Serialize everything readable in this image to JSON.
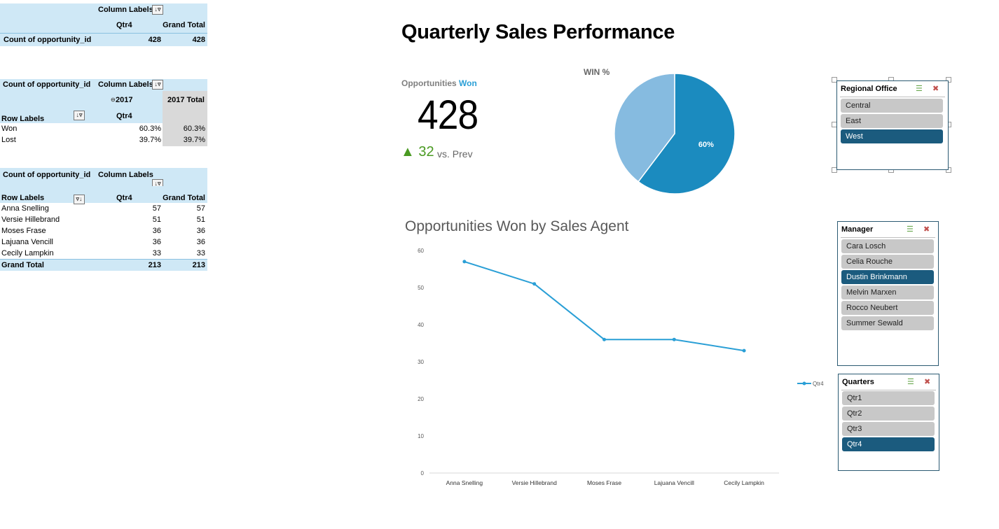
{
  "pivot1": {
    "column_labels": "Column Labels",
    "col_qtr": "Qtr4",
    "col_grand": "Grand Total",
    "row_label": "Count of opportunity_id",
    "qtr_value": "428",
    "grand_value": "428"
  },
  "pivot2": {
    "corner": "Count of opportunity_id",
    "column_labels": "Column Labels",
    "year": "2017",
    "year_total": "2017 Total",
    "row_labels": "Row Labels",
    "qtr": "Qtr4",
    "rows": [
      {
        "label": "Won",
        "qtr": "60.3%",
        "total": "60.3%"
      },
      {
        "label": "Lost",
        "qtr": "39.7%",
        "total": "39.7%"
      }
    ]
  },
  "pivot3": {
    "corner": "Count of opportunity_id",
    "column_labels": "Column Labels",
    "row_labels": "Row Labels",
    "col_qtr": "Qtr4",
    "col_grand": "Grand Total",
    "rows": [
      {
        "label": "Anna Snelling",
        "qtr": "57",
        "total": "57"
      },
      {
        "label": "Versie Hillebrand",
        "qtr": "51",
        "total": "51"
      },
      {
        "label": "Moses Frase",
        "qtr": "36",
        "total": "36"
      },
      {
        "label": "Lajuana Vencill",
        "qtr": "36",
        "total": "36"
      },
      {
        "label": "Cecily Lampkin",
        "qtr": "33",
        "total": "33"
      }
    ],
    "grand_label": "Grand Total",
    "grand_qtr": "213",
    "grand_total": "213"
  },
  "dashboard": {
    "title": "Quarterly Sales Performance",
    "kpi_label_prefix": "Opportunities",
    "kpi_label_highlight": "Won",
    "kpi_value": "428",
    "delta_arrow": "▲",
    "delta_value": "32",
    "delta_label": "vs. Prev"
  },
  "colors": {
    "pie_won": "#1b8bbf",
    "pie_lost": "#86bbe0",
    "line": "#2a9fd6",
    "slicer_selected": "#1b5b7e",
    "slicer_item": "#c8c8c8"
  },
  "chart_data": [
    {
      "type": "pie",
      "title": "WIN %",
      "values": [
        60.3,
        39.7
      ],
      "data_labels": [
        "60%",
        ""
      ]
    },
    {
      "type": "line",
      "title": "Opportunities Won by Sales Agent",
      "categories": [
        "Anna Snelling",
        "Versie Hillebrand",
        "Moses Frase",
        "Lajuana Vencill",
        "Cecily Lampkin"
      ],
      "series": [
        {
          "name": "Qtr4",
          "values": [
            57,
            51,
            36,
            36,
            33
          ]
        }
      ],
      "ylim": [
        0,
        60
      ],
      "yticks": [
        0,
        10,
        20,
        30,
        40,
        50,
        60
      ],
      "grid": false,
      "legend": "right"
    }
  ],
  "slicers": {
    "regional": {
      "title": "Regional Office",
      "items": [
        {
          "label": "Central",
          "selected": false
        },
        {
          "label": "East",
          "selected": false
        },
        {
          "label": "West",
          "selected": true
        }
      ]
    },
    "manager": {
      "title": "Manager",
      "items": [
        {
          "label": "Cara Losch",
          "selected": false
        },
        {
          "label": "Celia Rouche",
          "selected": false
        },
        {
          "label": "Dustin Brinkmann",
          "selected": true
        },
        {
          "label": "Melvin Marxen",
          "selected": false
        },
        {
          "label": "Rocco Neubert",
          "selected": false
        },
        {
          "label": "Summer Sewald",
          "selected": false
        }
      ]
    },
    "quarters": {
      "title": "Quarters",
      "items": [
        {
          "label": "Qtr1",
          "selected": false
        },
        {
          "label": "Qtr2",
          "selected": false
        },
        {
          "label": "Qtr3",
          "selected": false
        },
        {
          "label": "Qtr4",
          "selected": true
        }
      ]
    }
  },
  "icons": {
    "filter": "filter-icon",
    "multiselect": "multiselect-icon",
    "clear_filter": "clear-filter-icon"
  }
}
